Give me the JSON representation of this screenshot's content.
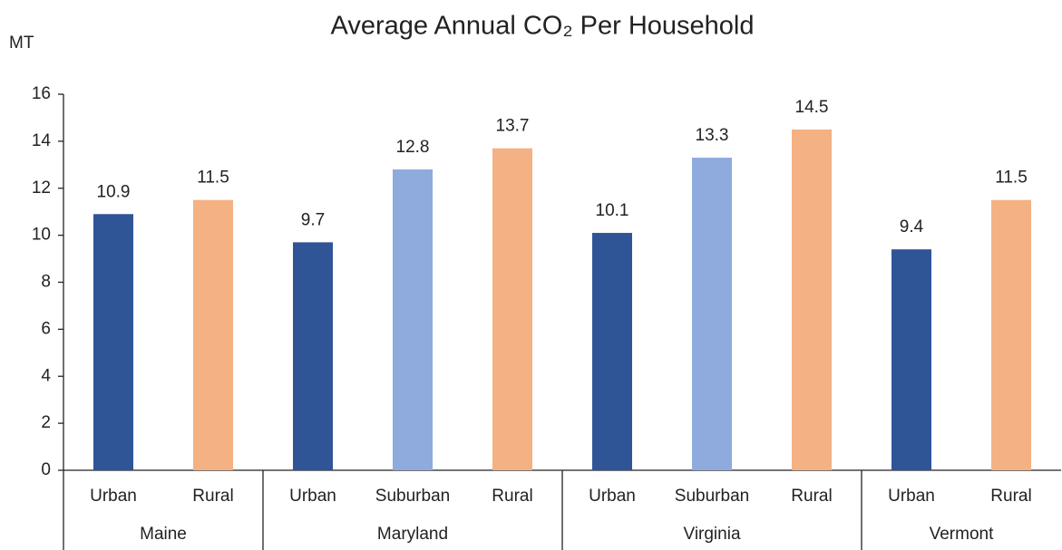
{
  "chart_data": {
    "type": "bar",
    "title": "Average Annual CO₂ Per Household",
    "y_label": "MT",
    "groups": [
      {
        "name": "Maine",
        "categories": [
          "Urban",
          "Rural"
        ],
        "values": [
          10.9,
          11.5
        ],
        "colors": [
          "#2f5597",
          "#f4b183"
        ]
      },
      {
        "name": "Maryland",
        "categories": [
          "Urban",
          "Suburban",
          "Rural"
        ],
        "values": [
          9.7,
          12.8,
          13.7
        ],
        "colors": [
          "#2f5597",
          "#8faadc",
          "#f4b183"
        ]
      },
      {
        "name": "Virginia",
        "categories": [
          "Urban",
          "Suburban",
          "Rural"
        ],
        "values": [
          10.1,
          13.3,
          14.5
        ],
        "colors": [
          "#2f5597",
          "#8faadc",
          "#f4b183"
        ]
      },
      {
        "name": "Vermont",
        "categories": [
          "Urban",
          "Rural"
        ],
        "values": [
          9.4,
          11.5
        ],
        "colors": [
          "#2f5597",
          "#f4b183"
        ]
      }
    ],
    "ylim": [
      0,
      16
    ],
    "yticks": [
      0,
      2,
      4,
      6,
      8,
      10,
      12,
      14,
      16
    ],
    "grid": false
  }
}
